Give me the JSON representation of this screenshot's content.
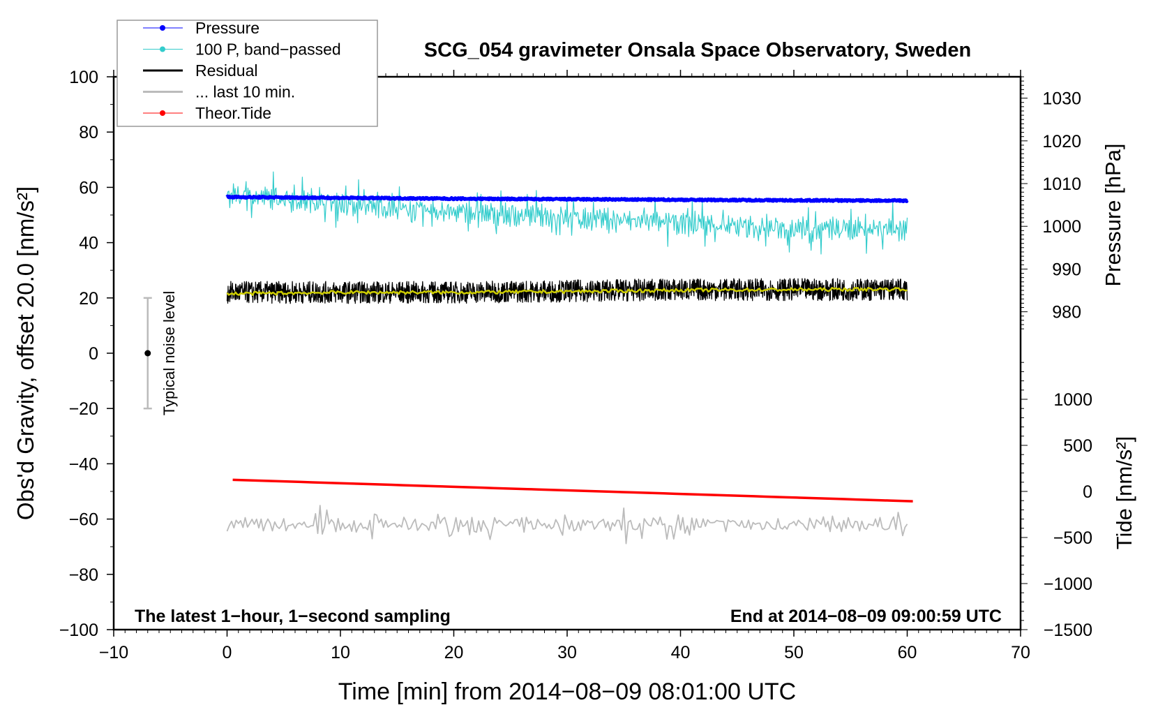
{
  "chart_data": {
    "type": "line",
    "title": "SCG_054 gravimeter Onsala Space Observatory, Sweden",
    "xlabel": "Time [min] from 2014−08−09 08:01:00 UTC",
    "ylabel": "Obs'd Gravity, offset 20.0 [nm/s²]",
    "ylabel_right_pressure": "Pressure [hPa]",
    "ylabel_right_tide": "Tide [nm/s²]",
    "xlim": [
      -10,
      70
    ],
    "ylim": [
      -100,
      100
    ],
    "pressure_lim": [
      905.6,
      1035
    ],
    "tide_lim": [
      -1500,
      4500
    ],
    "xticks": [
      "−10",
      "0",
      "10",
      "20",
      "30",
      "40",
      "50",
      "60",
      "70"
    ],
    "xtick_values": [
      -10,
      0,
      10,
      20,
      30,
      40,
      50,
      60,
      70
    ],
    "yticks": [
      "−100",
      "−80",
      "−60",
      "−40",
      "−20",
      "0",
      "20",
      "40",
      "60",
      "80",
      "100"
    ],
    "ytick_values": [
      -100,
      -80,
      -60,
      -40,
      -20,
      0,
      20,
      40,
      60,
      80,
      100
    ],
    "pressure_ticks": [
      "980",
      "990",
      "1000",
      "1010",
      "1020",
      "1030"
    ],
    "pressure_tick_values": [
      980,
      990,
      1000,
      1010,
      1020,
      1030
    ],
    "tide_ticks": [
      "−1500",
      "−1000",
      "−500",
      "0",
      "500",
      "1000"
    ],
    "tide_tick_values": [
      -1500,
      -1000,
      -500,
      0,
      500,
      1000
    ],
    "legend": {
      "placement": "top-left",
      "entries": [
        {
          "label": "Pressure",
          "color": "#0000ff",
          "marker": true
        },
        {
          "label": "100 P, band−passed",
          "color": "#33cccc",
          "marker": true
        },
        {
          "label": "Residual",
          "color": "#000000",
          "marker": false
        },
        {
          "label": "... last 10 min.",
          "color": "#bbbbbb",
          "marker": false
        },
        {
          "label": "Theor.Tide",
          "color": "#ff0000",
          "marker": true
        }
      ]
    },
    "series": [
      {
        "name": "Pressure",
        "axis": "gravity-units",
        "color": "#0000ff",
        "x": [
          0,
          10,
          20,
          30,
          40,
          50,
          60
        ],
        "values": [
          56.5,
          56.2,
          55.9,
          55.7,
          55.5,
          55.3,
          55.2
        ],
        "noise": 0.3
      },
      {
        "name": "100 P, band-passed",
        "color": "#33cccc",
        "x": [
          0,
          5,
          10,
          15,
          20,
          25,
          30,
          35,
          40,
          45,
          50,
          55,
          60
        ],
        "values": [
          57,
          56,
          54,
          52,
          51,
          50,
          49,
          48,
          47,
          46,
          45,
          45,
          45
        ],
        "noise": 6
      },
      {
        "name": "Residual",
        "color": "#000000",
        "x": [
          0,
          10,
          20,
          30,
          40,
          50,
          60
        ],
        "values": [
          22,
          22,
          22,
          22.5,
          23,
          23,
          23
        ],
        "noise": 4
      },
      {
        "name": "Residual smoothed",
        "color": "#cccc00",
        "x": [
          0,
          10,
          20,
          30,
          40,
          50,
          60
        ],
        "values": [
          21.5,
          22,
          22,
          22.3,
          22.8,
          23,
          23.2
        ],
        "noise": 0.6
      },
      {
        "name": "... last 10 min.",
        "color": "#bbbbbb",
        "x": [
          0,
          60
        ],
        "values": [
          -62,
          -62
        ],
        "noise": 4
      },
      {
        "name": "Theor.Tide",
        "axis": "tide",
        "color": "#ff0000",
        "x": [
          0.5,
          60.5
        ],
        "values": [
          126,
          -107
        ],
        "noise": 0
      }
    ],
    "noise_bar": {
      "label": "Typical noise level",
      "x": -7,
      "center": 0,
      "range": [
        -20,
        20
      ]
    },
    "annotations": {
      "bottom_left": "The latest 1−hour, 1−second sampling",
      "bottom_right": "End at 2014−08−09 09:00:59 UTC"
    }
  }
}
